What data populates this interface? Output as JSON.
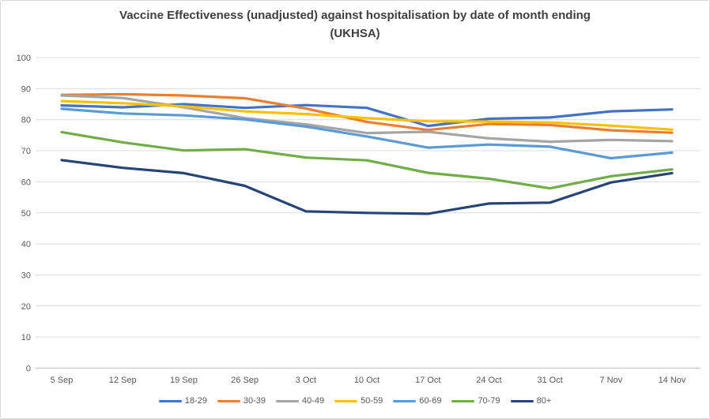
{
  "chart": {
    "title_line1": "Vaccine Effectiveness (unadjusted) against hospitalisation by date of month ending",
    "title_line2": "(UKHSA)"
  },
  "chart_data": {
    "type": "line",
    "title": "Vaccine Effectiveness (unadjusted) against hospitalisation by date of month ending (UKHSA)",
    "categories": [
      "5 Sep",
      "12 Sep",
      "19 Sep",
      "26 Sep",
      "3 Oct",
      "10 Oct",
      "17 Oct",
      "24 Oct",
      "31 Oct",
      "7 Nov",
      "14 Nov"
    ],
    "series": [
      {
        "name": "18-29",
        "color": "#4472C4",
        "values": [
          84.6,
          84.0,
          85.0,
          83.8,
          84.7,
          83.8,
          78.0,
          80.3,
          80.7,
          82.7,
          83.3
        ]
      },
      {
        "name": "30-39",
        "color": "#ED7D31",
        "values": [
          88.0,
          88.2,
          87.8,
          86.9,
          83.6,
          79.3,
          76.7,
          78.6,
          78.3,
          76.6,
          75.8
        ]
      },
      {
        "name": "40-49",
        "color": "#A5A5A5",
        "values": [
          87.8,
          87.0,
          84.0,
          80.5,
          78.5,
          75.7,
          76.1,
          74.0,
          72.9,
          73.5,
          73.1
        ]
      },
      {
        "name": "50-59",
        "color": "#FFC000",
        "values": [
          86.0,
          85.3,
          84.3,
          82.7,
          81.8,
          80.5,
          79.5,
          79.4,
          79.1,
          78.1,
          76.8
        ]
      },
      {
        "name": "60-69",
        "color": "#5B9BD5",
        "values": [
          83.5,
          82.0,
          81.4,
          80.1,
          77.8,
          74.6,
          71.0,
          72.0,
          71.3,
          67.6,
          69.4
        ]
      },
      {
        "name": "70-79",
        "color": "#70AD47",
        "values": [
          76.0,
          72.7,
          70.1,
          70.5,
          67.8,
          66.9,
          62.9,
          61.0,
          57.9,
          61.8,
          64.0
        ]
      },
      {
        "name": "80+",
        "color": "#264478",
        "values": [
          67.0,
          64.5,
          62.8,
          58.7,
          50.5,
          50.0,
          49.7,
          53.0,
          53.3,
          59.8,
          62.8
        ]
      }
    ],
    "ylim": [
      0,
      100
    ],
    "yticks": [
      0,
      10,
      20,
      30,
      40,
      50,
      60,
      70,
      80,
      90,
      100
    ],
    "grid": "horizontal",
    "legend_position": "bottom"
  },
  "styles": {
    "grid_color": "#dcdcdc",
    "axis_line_color": "#bfbfbf",
    "tick_label_color": "#595959",
    "title_color": "#3f3f3f",
    "border_color": "#d7d7d7",
    "background": "#ffffff"
  }
}
